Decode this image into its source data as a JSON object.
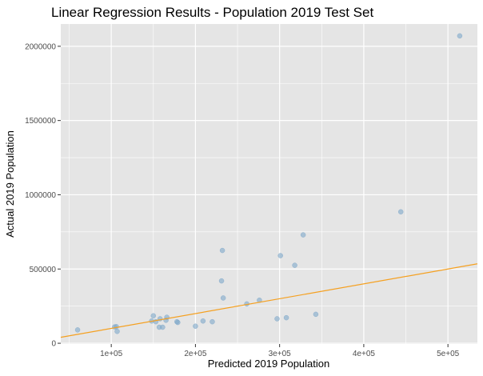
{
  "chart_data": {
    "type": "scatter",
    "title": "Linear Regression Results - Population 2019 Test Set",
    "xlabel": "Predicted 2019 Population",
    "ylabel": "Actual 2019 Population",
    "xlim": [
      40000,
      535000
    ],
    "ylim": [
      -5000,
      2150000
    ],
    "x_ticks": [
      100000,
      200000,
      300000,
      400000,
      500000
    ],
    "x_tick_labels": [
      "1e+05",
      "2e+05",
      "3e+05",
      "4e+05",
      "5e+05"
    ],
    "y_ticks": [
      0,
      500000,
      1000000,
      1500000,
      2000000
    ],
    "y_tick_labels": [
      "0",
      "500000",
      "1000000",
      "1500000",
      "2000000"
    ],
    "grid": true,
    "points": [
      {
        "x": 60000,
        "y": 90000
      },
      {
        "x": 104000,
        "y": 110000
      },
      {
        "x": 106000,
        "y": 112000
      },
      {
        "x": 107000,
        "y": 80000
      },
      {
        "x": 148000,
        "y": 150000
      },
      {
        "x": 150000,
        "y": 185000
      },
      {
        "x": 153000,
        "y": 145000
      },
      {
        "x": 157000,
        "y": 108000
      },
      {
        "x": 158000,
        "y": 165000
      },
      {
        "x": 161000,
        "y": 108000
      },
      {
        "x": 165000,
        "y": 155000
      },
      {
        "x": 166000,
        "y": 175000
      },
      {
        "x": 178000,
        "y": 145000
      },
      {
        "x": 179000,
        "y": 140000
      },
      {
        "x": 200000,
        "y": 115000
      },
      {
        "x": 209000,
        "y": 150000
      },
      {
        "x": 220000,
        "y": 145000
      },
      {
        "x": 231000,
        "y": 420000
      },
      {
        "x": 232000,
        "y": 625000
      },
      {
        "x": 233000,
        "y": 305000
      },
      {
        "x": 261000,
        "y": 265000
      },
      {
        "x": 276000,
        "y": 290000
      },
      {
        "x": 297000,
        "y": 165000
      },
      {
        "x": 301000,
        "y": 590000
      },
      {
        "x": 308000,
        "y": 172000
      },
      {
        "x": 318000,
        "y": 525000
      },
      {
        "x": 328000,
        "y": 730000
      },
      {
        "x": 343000,
        "y": 195000
      },
      {
        "x": 444000,
        "y": 885000
      },
      {
        "x": 514000,
        "y": 2070000
      }
    ],
    "regression_line": {
      "x": [
        40000,
        535000
      ],
      "y": [
        40000,
        535000
      ]
    },
    "colors": {
      "panel": "#e5e5e5",
      "grid": "#ffffff",
      "point": "#7ea8c9",
      "line": "#f5a020"
    }
  }
}
